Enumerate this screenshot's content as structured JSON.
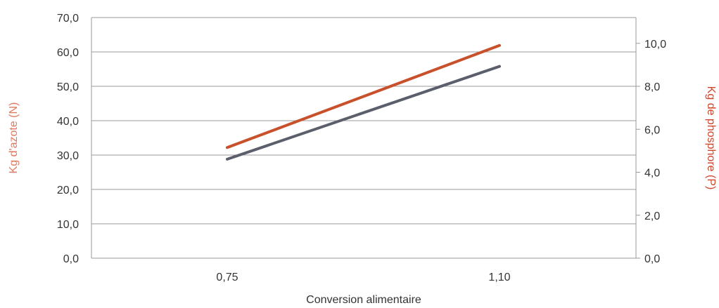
{
  "chart_data": {
    "type": "line",
    "categories": [
      "0,75",
      "1,10"
    ],
    "xlabel": "Conversion alimentaire",
    "ylabel_left": "Kg d'azote (N)",
    "ylabel_right": "Kg de phosphore (P)",
    "ylim_left": [
      0,
      70
    ],
    "ylim_right": [
      0,
      11.2
    ],
    "yticks_left": [
      "0,0",
      "10,0",
      "20,0",
      "30,0",
      "40,0",
      "50,0",
      "60,0",
      "70,0"
    ],
    "yticks_right": [
      "0,0",
      "2,0",
      "4,0",
      "6,0",
      "8,0",
      "10,0"
    ],
    "grid": true,
    "series": [
      {
        "axis": "right",
        "color": "#c8502a",
        "values": [
          5.15,
          9.9
        ]
      },
      {
        "axis": "left",
        "color": "#5a5f6b",
        "values": [
          28.8,
          55.8
        ]
      }
    ],
    "colors": {
      "left_axis_title": "#e07a5f",
      "right_axis_title": "#d0452a"
    }
  }
}
